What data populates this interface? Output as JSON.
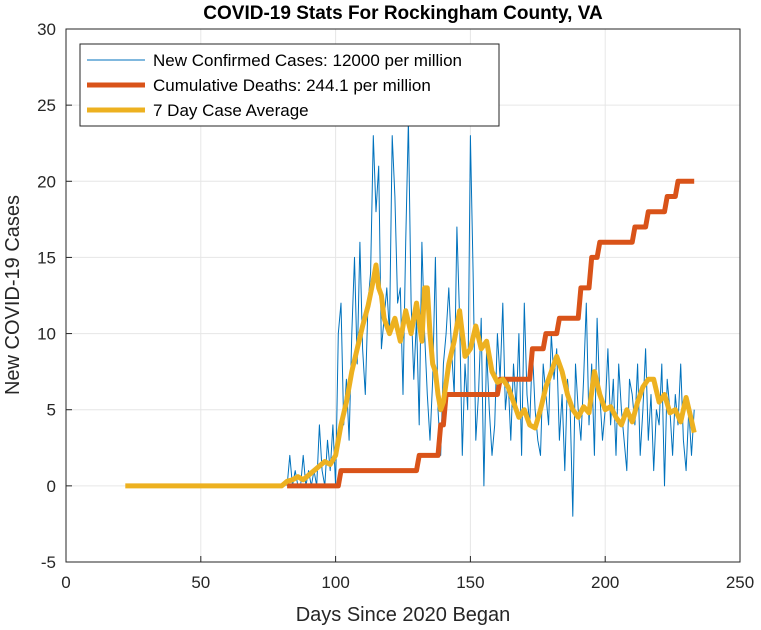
{
  "chart_data": {
    "type": "line",
    "title": "COVID-19 Stats For Rockingham County, VA",
    "xlabel": "Days Since 2020 Began",
    "ylabel": "New COVID-19 Cases",
    "xlim": [
      0,
      250
    ],
    "ylim": [
      -5,
      30
    ],
    "xticks": [
      0,
      50,
      100,
      150,
      200,
      250
    ],
    "yticks": [
      -5,
      0,
      5,
      10,
      15,
      20,
      25,
      30
    ],
    "grid": true,
    "legend_position": "top-left",
    "series": [
      {
        "name": "New Confirmed Cases: 12000 per million",
        "color": "#0072BD",
        "width": 1,
        "x": [
          82,
          83,
          84,
          85,
          86,
          87,
          88,
          89,
          90,
          91,
          92,
          93,
          94,
          95,
          96,
          97,
          98,
          99,
          100,
          101,
          102,
          103,
          104,
          105,
          106,
          107,
          108,
          109,
          110,
          111,
          112,
          113,
          114,
          115,
          116,
          117,
          118,
          119,
          120,
          121,
          122,
          123,
          124,
          125,
          126,
          127,
          128,
          129,
          130,
          131,
          132,
          133,
          134,
          135,
          136,
          137,
          138,
          139,
          140,
          141,
          142,
          143,
          144,
          145,
          146,
          147,
          148,
          149,
          150,
          151,
          152,
          153,
          154,
          155,
          156,
          157,
          158,
          159,
          160,
          161,
          162,
          163,
          164,
          165,
          166,
          167,
          168,
          169,
          170,
          171,
          172,
          173,
          174,
          175,
          176,
          177,
          178,
          179,
          180,
          181,
          182,
          183,
          184,
          185,
          186,
          187,
          188,
          189,
          190,
          191,
          192,
          193,
          194,
          195,
          196,
          197,
          198,
          199,
          200,
          201,
          202,
          203,
          204,
          205,
          206,
          207,
          208,
          209,
          210,
          211,
          212,
          213,
          214,
          215,
          216,
          217,
          218,
          219,
          220,
          221,
          222,
          223,
          224,
          225,
          226,
          227,
          228,
          229,
          230,
          231,
          232,
          233
        ],
        "y": [
          0,
          2,
          0,
          1,
          0,
          0,
          2,
          0,
          1,
          0,
          1,
          0,
          4,
          1,
          0,
          3,
          1,
          4,
          0,
          10,
          12,
          4,
          7,
          3,
          10,
          15,
          8,
          16,
          9,
          6,
          12,
          14,
          23,
          18,
          21,
          9,
          11,
          13,
          10,
          23,
          19,
          12,
          13,
          6,
          16,
          24,
          12,
          7,
          11,
          4,
          16,
          10,
          6,
          3,
          7,
          15,
          5,
          2,
          8,
          10,
          13,
          9,
          6,
          17,
          11,
          2,
          8,
          5,
          23,
          14,
          3,
          6,
          11,
          0,
          9,
          5,
          2,
          4,
          10,
          7,
          12,
          5,
          7,
          3,
          8,
          5,
          10,
          2,
          12,
          6,
          4,
          9,
          5,
          3,
          2,
          8,
          6,
          4,
          10,
          7,
          9,
          3,
          6,
          1,
          7,
          5,
          -2,
          8,
          5,
          3,
          7,
          12,
          4,
          8,
          2,
          11,
          6,
          3,
          5,
          9,
          4,
          7,
          2,
          8,
          5,
          3,
          1,
          7,
          6,
          4,
          8,
          2,
          5,
          9,
          3,
          6,
          1,
          5,
          4,
          8,
          0,
          7,
          5,
          2,
          6,
          4,
          8,
          3,
          1,
          5,
          2,
          5
        ]
      },
      {
        "name": "Cumulative Deaths: 244.1 per million",
        "color": "#D95319",
        "width": 5,
        "x": [
          82,
          101,
          102,
          130,
          131,
          138,
          139,
          140,
          141,
          160,
          161,
          172,
          173,
          177,
          178,
          182,
          183,
          190,
          191,
          194,
          195,
          197,
          198,
          210,
          211,
          215,
          216,
          222,
          223,
          226,
          227,
          233
        ],
        "y": [
          0,
          0,
          1,
          1,
          2,
          2,
          4,
          4,
          6,
          6,
          7,
          7,
          9,
          9,
          10,
          10,
          11,
          11,
          13,
          13,
          15,
          15,
          16,
          16,
          17,
          17,
          18,
          18,
          19,
          19,
          20,
          20
        ]
      },
      {
        "name": "7 Day Case Average",
        "color": "#EDB120",
        "width": 5,
        "x": [
          22,
          80,
          82,
          84,
          86,
          88,
          90,
          92,
          94,
          96,
          98,
          100,
          102,
          104,
          106,
          108,
          110,
          112,
          114,
          115,
          116,
          117,
          118,
          120,
          122,
          124,
          126,
          128,
          130,
          132,
          133,
          134,
          135,
          136,
          137,
          138,
          139,
          140,
          142,
          144,
          146,
          148,
          150,
          152,
          154,
          156,
          158,
          160,
          162,
          164,
          166,
          168,
          170,
          172,
          174,
          176,
          178,
          180,
          182,
          184,
          186,
          188,
          190,
          192,
          194,
          196,
          198,
          200,
          202,
          204,
          206,
          208,
          210,
          212,
          214,
          216,
          218,
          220,
          222,
          224,
          226,
          228,
          230,
          232,
          233
        ],
        "y": [
          0,
          0,
          0.3,
          0.4,
          0.6,
          0.4,
          0.7,
          1,
          1.3,
          1.6,
          1.4,
          2,
          4,
          5.5,
          7.5,
          9,
          10.5,
          11.8,
          13.5,
          14.5,
          13,
          12.5,
          11,
          10,
          11,
          9.5,
          11.5,
          10,
          12,
          9.5,
          13,
          13,
          10,
          8,
          7.5,
          6,
          5,
          5.5,
          8,
          9.5,
          11.5,
          8.5,
          9,
          10.5,
          9,
          9.5,
          7.5,
          6.8,
          7,
          6.5,
          5.5,
          4.5,
          5,
          4,
          3.8,
          5,
          6.5,
          7.5,
          8.5,
          7.5,
          6,
          5,
          4.5,
          5.2,
          4.8,
          7.5,
          6,
          5,
          5.2,
          4.5,
          4,
          5,
          4.2,
          5.5,
          6.5,
          7,
          7,
          5.5,
          6,
          4.8,
          5,
          4.2,
          5.8,
          4.3,
          3.5
        ]
      }
    ]
  }
}
